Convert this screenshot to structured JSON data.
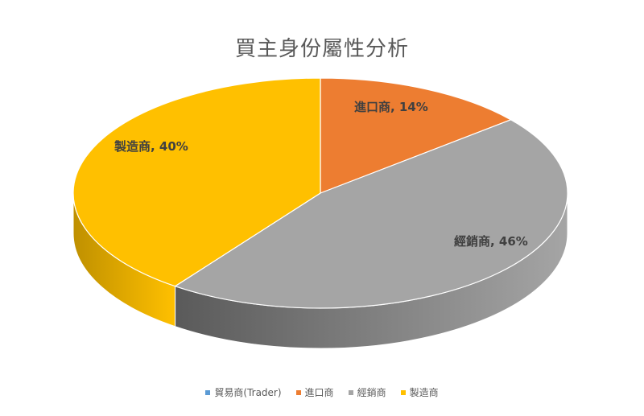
{
  "chart_data": {
    "type": "pie",
    "title": "買主身份屬性分析",
    "categories": [
      "貿易商(Trader)",
      "進口商",
      "經銷商",
      "製造商"
    ],
    "values": [
      0,
      14,
      46,
      40
    ],
    "data_labels": [
      "",
      "進口商, 14%",
      "經銷商, 46%",
      "製造商, 40%"
    ],
    "colors": [
      "#5B9BD5",
      "#ED7D31",
      "#A5A5A5",
      "#FFC000"
    ],
    "side_colors": [
      "#41719C",
      "#B85F21",
      "#5A5A5A",
      "#BF9000"
    ],
    "legend_position": "bottom",
    "style": "3d"
  }
}
